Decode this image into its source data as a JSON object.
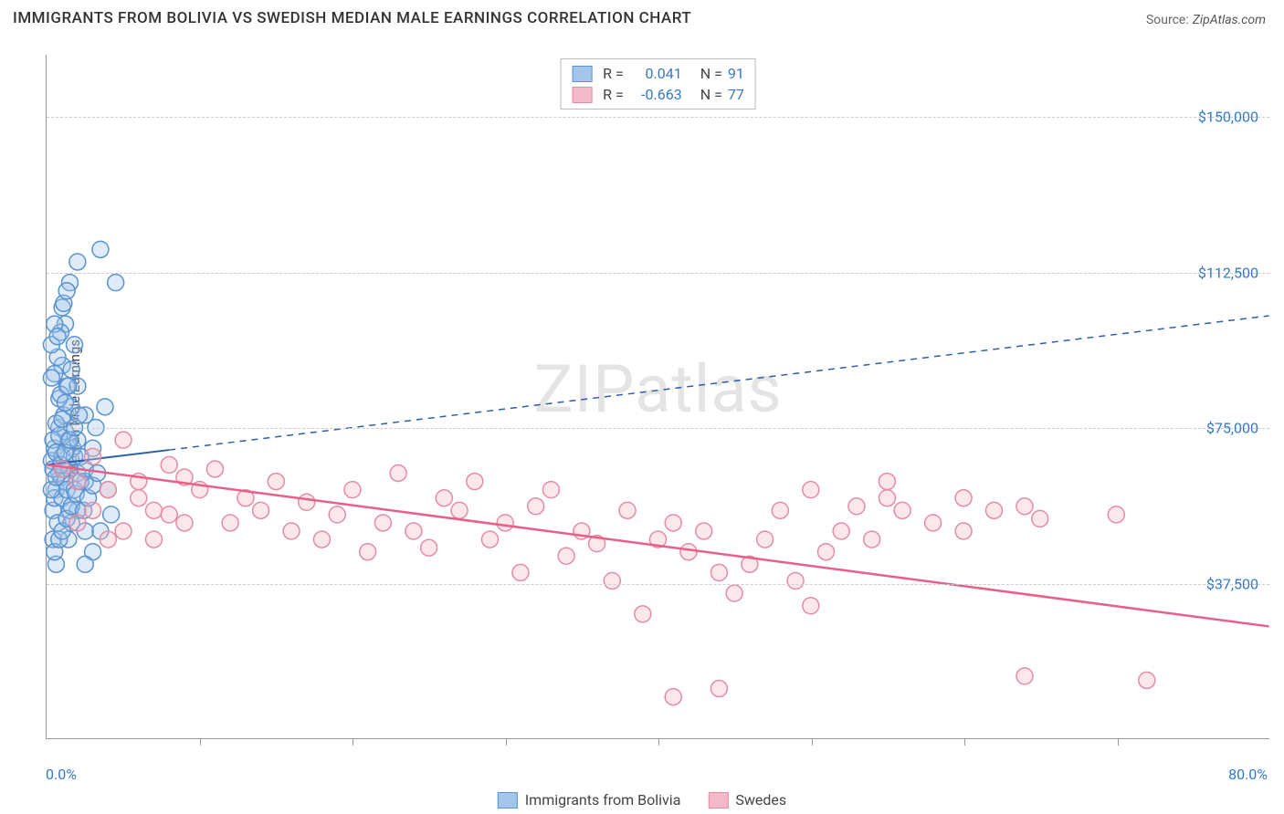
{
  "title": "IMMIGRANTS FROM BOLIVIA VS SWEDISH MEDIAN MALE EARNINGS CORRELATION CHART",
  "source_label": "Source:",
  "source_value": "ZipAtlas.com",
  "watermark": "ZIPatlas",
  "chart": {
    "type": "scatter",
    "background_color": "#ffffff",
    "grid_color": "#cccccc",
    "axis_color": "#999999",
    "ylabel": "Median Male Earnings",
    "ylabel_fontsize": 15,
    "xlim": [
      0,
      80
    ],
    "ylim": [
      0,
      165000
    ],
    "x_start_label": "0.0%",
    "x_end_label": "80.0%",
    "xtick_positions": [
      10,
      20,
      30,
      40,
      50,
      60,
      70
    ],
    "ytick_labels": [
      "$37,500",
      "$75,000",
      "$112,500",
      "$150,000"
    ],
    "ytick_values": [
      37500,
      75000,
      112500,
      150000
    ],
    "tick_label_color": "#3478c9",
    "tick_label_fontsize": 16,
    "marker_radius": 9,
    "marker_stroke_width": 1.5,
    "marker_fill_opacity": 0.35,
    "series": [
      {
        "name": "Immigrants from Bolivia",
        "stroke": "#5a93d0",
        "fill": "#a4c6eb",
        "r_value": "0.041",
        "n_value": "91",
        "trend": {
          "x1": 0,
          "y1": 66000,
          "x2": 80,
          "y2": 102000,
          "solid_until_x": 8,
          "color": "#2c5fa8",
          "width": 2
        },
        "points": [
          [
            0.3,
            67000
          ],
          [
            0.5,
            70000
          ],
          [
            0.4,
            55000
          ],
          [
            0.6,
            60000
          ],
          [
            0.8,
            75000
          ],
          [
            1.0,
            90000
          ],
          [
            1.2,
            100000
          ],
          [
            0.7,
            52000
          ],
          [
            1.5,
            110000
          ],
          [
            0.9,
            63000
          ],
          [
            1.1,
            78000
          ],
          [
            1.3,
            85000
          ],
          [
            0.4,
            48000
          ],
          [
            0.6,
            42000
          ],
          [
            1.0,
            104000
          ],
          [
            1.8,
            95000
          ],
          [
            2.0,
            115000
          ],
          [
            3.5,
            118000
          ],
          [
            4.0,
            60000
          ],
          [
            2.5,
            50000
          ],
          [
            1.4,
            72000
          ],
          [
            1.6,
            80000
          ],
          [
            0.5,
            88000
          ],
          [
            0.7,
            92000
          ],
          [
            0.3,
            95000
          ],
          [
            0.9,
            98000
          ],
          [
            1.1,
            105000
          ],
          [
            1.3,
            108000
          ],
          [
            0.5,
            58000
          ],
          [
            0.8,
            64000
          ],
          [
            1.0,
            68000
          ],
          [
            1.2,
            74000
          ],
          [
            1.5,
            65000
          ],
          [
            1.7,
            70000
          ],
          [
            2.0,
            55000
          ],
          [
            2.5,
            62000
          ],
          [
            3.0,
            45000
          ],
          [
            3.5,
            50000
          ],
          [
            4.5,
            110000
          ],
          [
            2.0,
            85000
          ],
          [
            0.4,
            72000
          ],
          [
            0.6,
            76000
          ],
          [
            0.8,
            82000
          ],
          [
            1.0,
            58000
          ],
          [
            1.2,
            62000
          ],
          [
            1.4,
            48000
          ],
          [
            1.6,
            52000
          ],
          [
            1.8,
            68000
          ],
          [
            2.0,
            72000
          ],
          [
            2.5,
            78000
          ],
          [
            0.5,
            100000
          ],
          [
            0.7,
            97000
          ],
          [
            0.3,
            87000
          ],
          [
            0.9,
            83000
          ],
          [
            1.1,
            65000
          ],
          [
            1.3,
            60000
          ],
          [
            1.5,
            55000
          ],
          [
            0.4,
            65000
          ],
          [
            0.6,
            69000
          ],
          [
            0.8,
            73000
          ],
          [
            1.0,
            77000
          ],
          [
            1.2,
            81000
          ],
          [
            1.4,
            85000
          ],
          [
            1.6,
            89000
          ],
          [
            1.8,
            60000
          ],
          [
            2.0,
            64000
          ],
          [
            2.2,
            68000
          ],
          [
            2.5,
            42000
          ],
          [
            3.0,
            70000
          ],
          [
            3.2,
            75000
          ],
          [
            3.8,
            80000
          ],
          [
            4.2,
            54000
          ],
          [
            0.5,
            45000
          ],
          [
            0.8,
            48000
          ],
          [
            1.0,
            50000
          ],
          [
            1.3,
            53000
          ],
          [
            1.6,
            56000
          ],
          [
            1.9,
            59000
          ],
          [
            2.2,
            62000
          ],
          [
            2.5,
            65000
          ],
          [
            0.3,
            60000
          ],
          [
            0.6,
            63000
          ],
          [
            0.9,
            66000
          ],
          [
            1.2,
            69000
          ],
          [
            1.5,
            72000
          ],
          [
            1.8,
            75000
          ],
          [
            2.1,
            78000
          ],
          [
            2.4,
            55000
          ],
          [
            2.7,
            58000
          ],
          [
            3.0,
            61000
          ],
          [
            3.3,
            64000
          ]
        ]
      },
      {
        "name": "Swedes",
        "stroke": "#e58ca5",
        "fill": "#f4b9c9",
        "r_value": "-0.663",
        "n_value": "77",
        "trend": {
          "x1": 0,
          "y1": 66000,
          "x2": 80,
          "y2": 27000,
          "solid_until_x": 80,
          "color": "#e85f87",
          "width": 2.5
        },
        "points": [
          [
            1,
            65000
          ],
          [
            2,
            62000
          ],
          [
            3,
            68000
          ],
          [
            4,
            60000
          ],
          [
            5,
            72000
          ],
          [
            6,
            58000
          ],
          [
            7,
            55000
          ],
          [
            8,
            66000
          ],
          [
            9,
            63000
          ],
          [
            10,
            60000
          ],
          [
            11,
            65000
          ],
          [
            12,
            52000
          ],
          [
            13,
            58000
          ],
          [
            14,
            55000
          ],
          [
            15,
            62000
          ],
          [
            16,
            50000
          ],
          [
            17,
            57000
          ],
          [
            18,
            48000
          ],
          [
            19,
            54000
          ],
          [
            20,
            60000
          ],
          [
            21,
            45000
          ],
          [
            22,
            52000
          ],
          [
            23,
            64000
          ],
          [
            24,
            50000
          ],
          [
            25,
            46000
          ],
          [
            26,
            58000
          ],
          [
            27,
            55000
          ],
          [
            28,
            62000
          ],
          [
            29,
            48000
          ],
          [
            30,
            52000
          ],
          [
            31,
            40000
          ],
          [
            32,
            56000
          ],
          [
            33,
            60000
          ],
          [
            34,
            44000
          ],
          [
            35,
            50000
          ],
          [
            36,
            47000
          ],
          [
            37,
            38000
          ],
          [
            38,
            55000
          ],
          [
            39,
            30000
          ],
          [
            40,
            48000
          ],
          [
            41,
            52000
          ],
          [
            42,
            45000
          ],
          [
            43,
            50000
          ],
          [
            44,
            40000
          ],
          [
            45,
            35000
          ],
          [
            46,
            42000
          ],
          [
            47,
            48000
          ],
          [
            48,
            55000
          ],
          [
            49,
            38000
          ],
          [
            50,
            32000
          ],
          [
            51,
            45000
          ],
          [
            52,
            50000
          ],
          [
            53,
            56000
          ],
          [
            54,
            48000
          ],
          [
            55,
            58000
          ],
          [
            56,
            55000
          ],
          [
            58,
            52000
          ],
          [
            60,
            50000
          ],
          [
            62,
            55000
          ],
          [
            64,
            56000
          ],
          [
            65,
            53000
          ],
          [
            70,
            54000
          ],
          [
            3,
            55000
          ],
          [
            5,
            50000
          ],
          [
            7,
            48000
          ],
          [
            9,
            52000
          ],
          [
            2,
            52000
          ],
          [
            4,
            48000
          ],
          [
            6,
            62000
          ],
          [
            8,
            54000
          ],
          [
            41,
            10000
          ],
          [
            44,
            12000
          ],
          [
            64,
            15000
          ],
          [
            72,
            14000
          ],
          [
            50,
            60000
          ],
          [
            55,
            62000
          ],
          [
            60,
            58000
          ]
        ]
      }
    ]
  }
}
